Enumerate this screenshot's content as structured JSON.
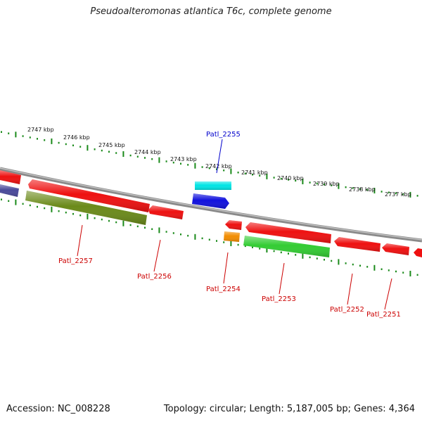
{
  "title": "Pseudoalteromonas atlantica T6c, complete genome",
  "footer": {
    "accession": "Accession: NC_008228",
    "stats": "Topology: circular; Length: 5,187,005 bp; Genes: 4,364"
  },
  "colors": {
    "backbone": "#8a8a8a",
    "ticks": "#1a8a1a",
    "label_forward": "#0000cc",
    "label_reverse": "#cc0000"
  },
  "kbp_labels": [
    {
      "id": "2747",
      "text": "2747 kbp"
    },
    {
      "id": "2746",
      "text": "2746 kbp"
    },
    {
      "id": "2745",
      "text": "2745 kbp"
    },
    {
      "id": "2744",
      "text": "2744 kbp"
    },
    {
      "id": "2743",
      "text": "2743 kbp"
    },
    {
      "id": "2742",
      "text": "2742 kbp"
    },
    {
      "id": "2741",
      "text": "2741 kbp"
    },
    {
      "id": "2740",
      "text": "2740 kbp"
    },
    {
      "id": "2739",
      "text": "2739 kbp"
    },
    {
      "id": "2738",
      "text": "2738 kbp"
    },
    {
      "id": "2737",
      "text": "2737 kbp"
    }
  ],
  "genes": [
    {
      "id": "Patl_2255",
      "label": "Patl_2255",
      "strand": "forward",
      "color": "#00e5e5"
    },
    {
      "id": "Patl_2257",
      "label": "Patl_2257",
      "strand": "reverse",
      "color": "#6b8a1a"
    },
    {
      "id": "Patl_2256",
      "label": "Patl_2256",
      "strand": "reverse",
      "color": "#ee1111"
    },
    {
      "id": "Patl_2254",
      "label": "Patl_2254",
      "strand": "reverse",
      "color": "#f28c00"
    },
    {
      "id": "Patl_2253",
      "label": "Patl_2253",
      "strand": "reverse",
      "color": "#33cc33"
    },
    {
      "id": "Patl_2252",
      "label": "Patl_2252",
      "strand": "reverse",
      "color": "#ee1111"
    },
    {
      "id": "Patl_2251",
      "label": "Patl_2251",
      "strand": "reverse",
      "color": "#ee1111"
    }
  ],
  "unlabeled_features": [
    {
      "id": "fwd-blue",
      "color": "#1111dd"
    },
    {
      "id": "fwd-red-left",
      "color": "#ee1111"
    },
    {
      "id": "fwd-purple-left",
      "color": "#4a4a9a"
    },
    {
      "id": "fwd-red-long",
      "color": "#ee1111"
    },
    {
      "id": "rev-red-small",
      "color": "#ee1111"
    },
    {
      "id": "rev-red-long",
      "color": "#ee1111"
    },
    {
      "id": "rev-red-right",
      "color": "#ee1111"
    }
  ]
}
